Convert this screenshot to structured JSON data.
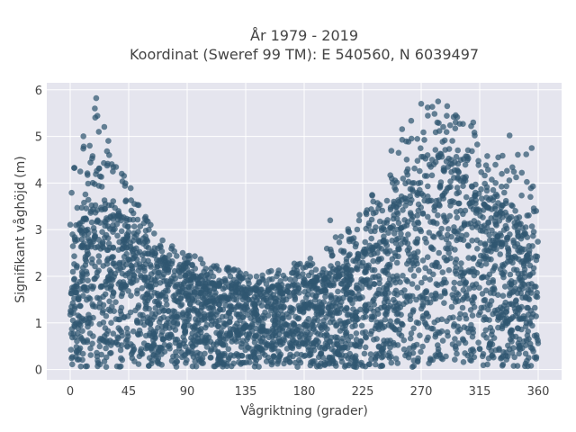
{
  "chart_data": {
    "type": "scatter",
    "title_line1": "År 1979 - 2019",
    "title_line2": "Koordinat (Sweref 99 TM): E 540560, N 6039497",
    "xlabel": "Vågriktning (grader)",
    "ylabel": "Signifikant våghöjd (m)",
    "xlim": [
      -18,
      378
    ],
    "ylim": [
      -0.22,
      6.15
    ],
    "xticks": [
      0,
      45,
      90,
      135,
      180,
      225,
      270,
      315,
      360
    ],
    "yticks": [
      0,
      1,
      2,
      3,
      4,
      5,
      6
    ],
    "grid": true,
    "marker_color": "#2f5670",
    "plot_bg": "#e5e5ee",
    "envelope": {
      "x": [
        0,
        10,
        20,
        30,
        45,
        60,
        75,
        90,
        105,
        120,
        135,
        150,
        165,
        180,
        195,
        210,
        225,
        240,
        255,
        270,
        285,
        300,
        315,
        330,
        345,
        360
      ],
      "y_core_max": [
        2.3,
        3.1,
        3.6,
        3.5,
        3.0,
        2.5,
        2.2,
        2.0,
        1.85,
        1.75,
        1.7,
        1.7,
        1.75,
        1.85,
        1.95,
        2.1,
        2.5,
        3.0,
        3.6,
        4.0,
        4.6,
        4.2,
        3.6,
        3.3,
        3.1,
        2.9
      ],
      "y_extreme_max": [
        4.3,
        5.1,
        5.8,
        5.0,
        4.0,
        3.2,
        2.7,
        2.5,
        2.35,
        2.2,
        2.1,
        2.1,
        2.2,
        2.4,
        2.6,
        3.0,
        3.5,
        4.2,
        5.3,
        5.7,
        5.7,
        5.4,
        5.1,
        4.6,
        4.7,
        4.6
      ]
    },
    "highlight_points": [
      {
        "x": 20,
        "y": 5.82
      },
      {
        "x": 19,
        "y": 5.6
      },
      {
        "x": 22,
        "y": 5.1
      },
      {
        "x": 283,
        "y": 5.75
      },
      {
        "x": 290,
        "y": 5.65
      },
      {
        "x": 270,
        "y": 5.7
      },
      {
        "x": 338,
        "y": 5.02
      },
      {
        "x": 355,
        "y": 4.75
      },
      {
        "x": 30,
        "y": 4.6
      },
      {
        "x": 15,
        "y": 4.8
      },
      {
        "x": 310,
        "y": 5.3
      },
      {
        "x": 200,
        "y": 3.2
      }
    ]
  }
}
